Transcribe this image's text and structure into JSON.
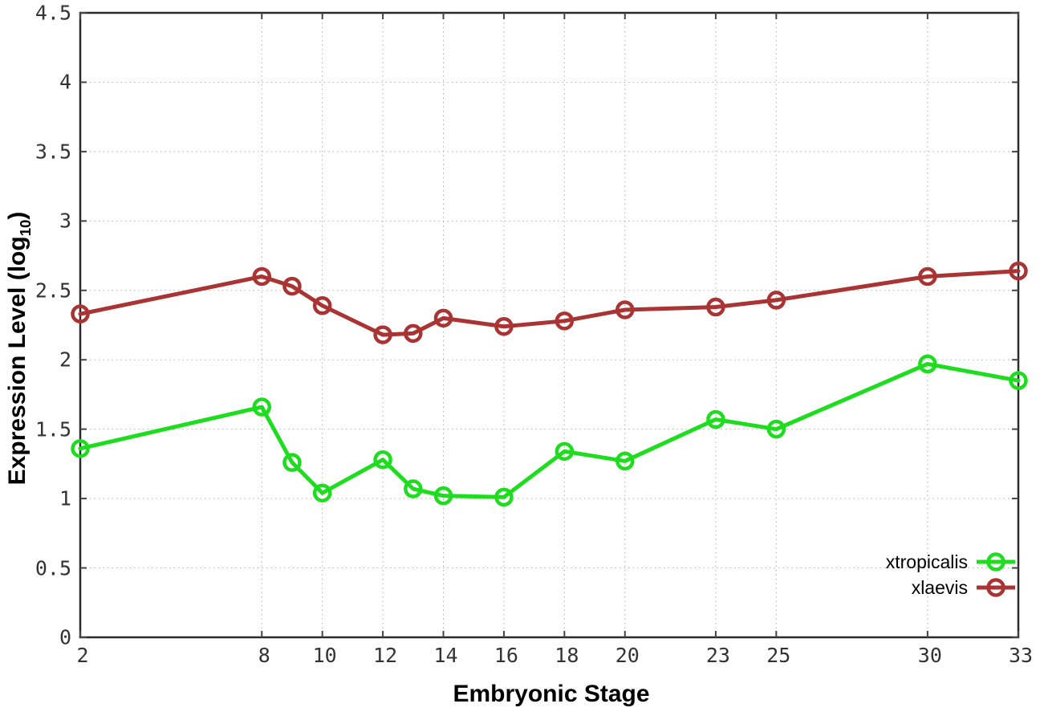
{
  "chart_data": {
    "type": "line",
    "title": "",
    "xlabel": "Embryonic Stage",
    "ylabel": {
      "text": "Expression Level (log",
      "sub": "10",
      "suffix": ")"
    },
    "x": [
      2,
      8,
      9,
      10,
      12,
      13,
      14,
      16,
      18,
      20,
      23,
      25,
      30,
      33
    ],
    "series": [
      {
        "name": "xtropicalis",
        "color": "#1edd1e",
        "values": [
          1.36,
          1.66,
          1.26,
          1.04,
          1.28,
          1.07,
          1.02,
          1.01,
          1.34,
          1.27,
          1.57,
          1.5,
          1.97,
          1.85
        ]
      },
      {
        "name": "xlaevis",
        "color": "#aa3333",
        "values": [
          2.33,
          2.6,
          2.53,
          2.39,
          2.18,
          2.19,
          2.3,
          2.24,
          2.28,
          2.36,
          2.38,
          2.43,
          2.6,
          2.64
        ]
      }
    ],
    "xlim": [
      2,
      33
    ],
    "ylim": [
      0,
      4.5
    ],
    "x_ticks": [
      2,
      8,
      10,
      12,
      14,
      16,
      18,
      20,
      23,
      25,
      30,
      33
    ],
    "y_ticks": [
      0,
      0.5,
      1,
      1.5,
      2,
      2.5,
      3,
      3.5,
      4,
      4.5
    ],
    "grid": true,
    "legend_position": "bottom-right",
    "axis_color": "#2b2b2b",
    "tick_color": "#444444",
    "grid_color": "#b0b0b0",
    "tick_label_color": "#333333"
  }
}
